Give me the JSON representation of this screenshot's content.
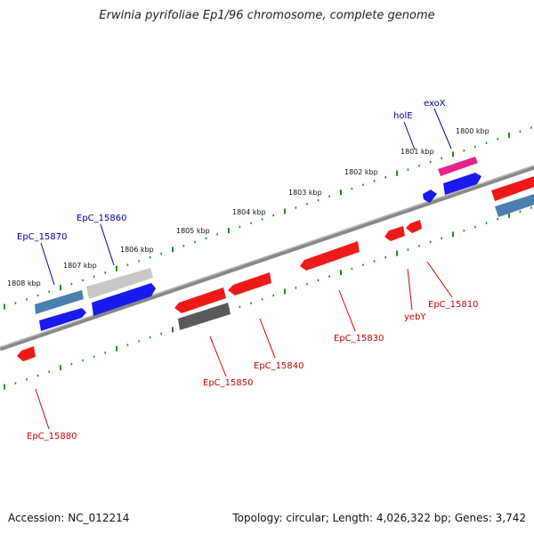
{
  "title": "Erwinia pyrifoliae Ep1/96 chromosome, complete genome",
  "footer": {
    "accession": "Accession: NC_012214",
    "summary": "Topology: circular; Length: 4,026,322 bp; Genes: 3,742"
  },
  "colors": {
    "forward_gene": "#0000ee",
    "reverse_gene": "#ee0000",
    "forward_tick": "#228b22",
    "backbone": "#777777",
    "forward_label": "#0000aa",
    "reverse_label": "#cc0000"
  },
  "scale_labels": [
    "1800 kbp",
    "1801 kbp",
    "1802 kbp",
    "1803 kbp",
    "1804 kbp",
    "1805 kbp",
    "1806 kbp",
    "1807 kbp",
    "1808 kbp"
  ],
  "forward_gene_labels": [
    "exoX",
    "holE",
    "EpC_15860",
    "EpC_15870"
  ],
  "reverse_gene_labels": [
    "EpC_15810",
    "yebY",
    "EpC_15830",
    "EpC_15840",
    "EpC_15850",
    "EpC_15880"
  ]
}
